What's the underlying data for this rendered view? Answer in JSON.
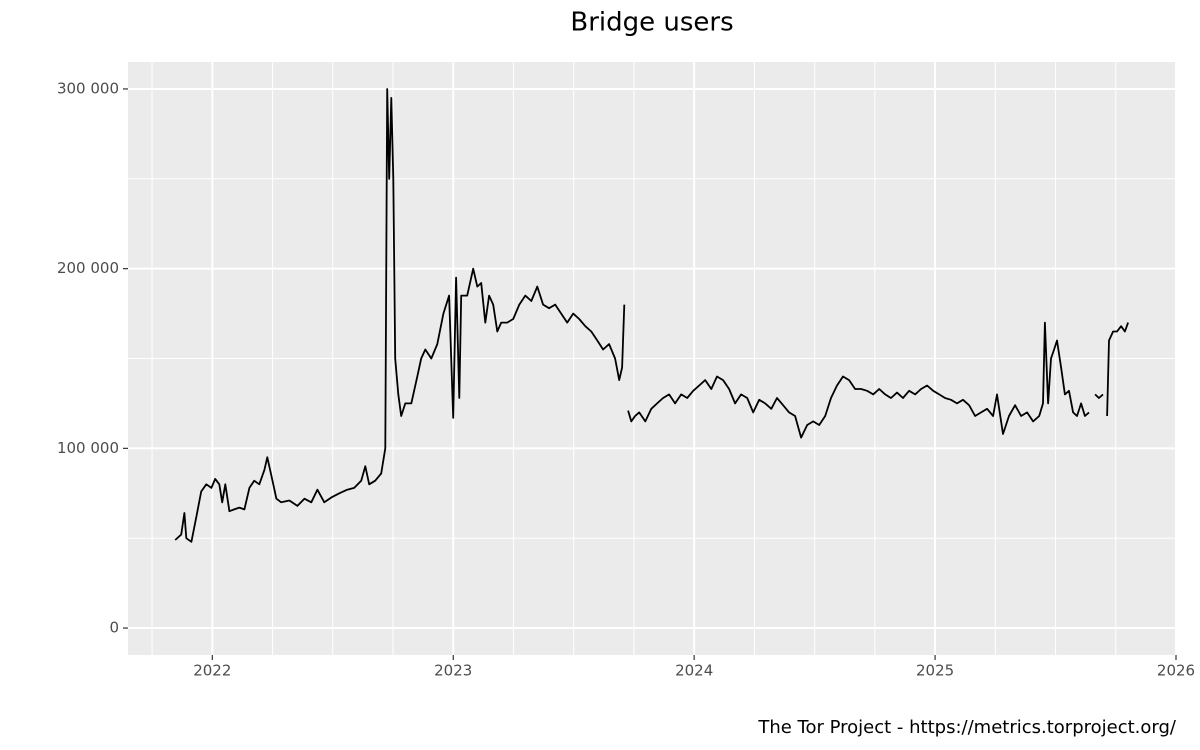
{
  "chart_data": {
    "type": "line",
    "title": "Bridge users",
    "caption": "The Tor Project - https://metrics.torproject.org/",
    "color": "#000000",
    "grid": true,
    "xlim": [
      2021.65,
      2026.0
    ],
    "xticks": [
      2022,
      2023,
      2024,
      2025,
      2026
    ],
    "x_minor_ticks": [
      2021.75,
      2022.25,
      2022.5,
      2022.75,
      2023.25,
      2023.5,
      2023.75,
      2024.25,
      2024.5,
      2024.75,
      2025.25,
      2025.5,
      2025.75
    ],
    "ylim": [
      -15000,
      315000
    ],
    "yticks": [
      0,
      {
        "value": 100000,
        "label": "100 000"
      },
      {
        "value": 200000,
        "label": "200 000"
      },
      {
        "value": 300000,
        "label": "300 000"
      }
    ],
    "y_minor_ticks": [
      50000,
      150000,
      250000
    ],
    "x": [
      2021.846,
      2021.871,
      2021.884,
      2021.892,
      2021.913,
      2021.934,
      2021.954,
      2021.975,
      2021.996,
      2022.012,
      2022.029,
      2022.041,
      2022.054,
      2022.071,
      2022.091,
      2022.112,
      2022.133,
      2022.154,
      2022.174,
      2022.195,
      2022.216,
      2022.228,
      2022.245,
      2022.266,
      2022.286,
      2022.32,
      2022.353,
      2022.382,
      2022.411,
      2022.436,
      2022.465,
      2022.498,
      2022.527,
      2022.56,
      2022.589,
      2022.618,
      2022.635,
      2022.651,
      2022.676,
      2022.701,
      2022.718,
      2022.726,
      2022.734,
      2022.743,
      2022.751,
      2022.759,
      2022.772,
      2022.784,
      2022.801,
      2022.826,
      2022.851,
      2022.867,
      2022.884,
      2022.909,
      2022.934,
      2022.959,
      2022.983,
      2023.0,
      2023.012,
      2023.025,
      2023.033,
      2023.058,
      2023.083,
      2023.1,
      2023.116,
      2023.133,
      2023.149,
      2023.166,
      2023.183,
      2023.199,
      2023.224,
      2023.249,
      2023.274,
      2023.299,
      2023.324,
      2023.349,
      2023.373,
      2023.398,
      2023.423,
      2023.448,
      2023.473,
      2023.498,
      2023.523,
      2023.548,
      2023.573,
      2023.598,
      2023.622,
      2023.647,
      2023.672,
      2023.689,
      2023.701,
      2023.71,
      2023.718,
      2023.726,
      2023.739,
      2023.755,
      2023.772,
      2023.797,
      2023.822,
      2023.846,
      2023.871,
      2023.896,
      2023.921,
      2023.946,
      2023.971,
      2023.996,
      2024.021,
      2024.046,
      2024.071,
      2024.095,
      2024.12,
      2024.145,
      2024.17,
      2024.195,
      2024.22,
      2024.245,
      2024.27,
      2024.295,
      2024.32,
      2024.344,
      2024.369,
      2024.394,
      2024.419,
      2024.444,
      2024.469,
      2024.494,
      2024.519,
      2024.544,
      2024.568,
      2024.593,
      2024.618,
      2024.643,
      2024.668,
      2024.693,
      2024.718,
      2024.743,
      2024.768,
      2024.793,
      2024.817,
      2024.842,
      2024.867,
      2024.892,
      2024.917,
      2024.942,
      2024.967,
      2024.992,
      2025.017,
      2025.041,
      2025.066,
      2025.091,
      2025.116,
      2025.141,
      2025.166,
      2025.191,
      2025.216,
      2025.241,
      2025.257,
      2025.282,
      2025.307,
      2025.332,
      2025.357,
      2025.382,
      2025.407,
      2025.432,
      2025.448,
      2025.456,
      2025.469,
      2025.481,
      2025.494,
      2025.506,
      2025.523,
      2025.539,
      2025.556,
      2025.573,
      2025.589,
      2025.606,
      2025.622,
      2025.639,
      2025.651,
      2025.664,
      2025.68,
      2025.697,
      2025.705,
      2025.714,
      2025.722,
      2025.739,
      2025.755,
      2025.772,
      2025.788,
      2025.801
    ],
    "values": [
      49000,
      52000,
      64000,
      50000,
      48000,
      62000,
      76000,
      80000,
      78000,
      83000,
      80000,
      70000,
      80000,
      65000,
      66000,
      67000,
      66000,
      78000,
      82000,
      80000,
      88000,
      95000,
      85000,
      72000,
      70000,
      71000,
      68000,
      72000,
      70000,
      77000,
      70000,
      73000,
      75000,
      77000,
      78000,
      82000,
      90000,
      80000,
      82000,
      86000,
      100000,
      300000,
      250000,
      295000,
      250000,
      150000,
      130000,
      118000,
      125000,
      125000,
      140000,
      150000,
      155000,
      150000,
      158000,
      175000,
      185000,
      117000,
      195000,
      128000,
      185000,
      185000,
      200000,
      190000,
      192000,
      170000,
      185000,
      180000,
      165000,
      170000,
      170000,
      172000,
      180000,
      185000,
      182000,
      190000,
      180000,
      178000,
      180000,
      175000,
      170000,
      175000,
      172000,
      168000,
      165000,
      160000,
      155000,
      158000,
      150000,
      138000,
      145000,
      180000,
      null,
      121000,
      115000,
      118000,
      120000,
      115000,
      122000,
      125000,
      128000,
      130000,
      125000,
      130000,
      128000,
      132000,
      135000,
      138000,
      133000,
      140000,
      138000,
      133000,
      125000,
      130000,
      128000,
      120000,
      127000,
      125000,
      122000,
      128000,
      124000,
      120000,
      118000,
      106000,
      113000,
      115000,
      113000,
      118000,
      128000,
      135000,
      140000,
      138000,
      133000,
      133000,
      132000,
      130000,
      133000,
      130000,
      128000,
      131000,
      128000,
      132000,
      130000,
      133000,
      135000,
      132000,
      130000,
      128000,
      127000,
      125000,
      127000,
      124000,
      118000,
      120000,
      122000,
      118000,
      130000,
      108000,
      118000,
      124000,
      118000,
      120000,
      115000,
      118000,
      125000,
      170000,
      125000,
      150000,
      155000,
      160000,
      145000,
      130000,
      132000,
      120000,
      118000,
      125000,
      118000,
      120000,
      null,
      130000,
      128000,
      130000,
      null,
      118000,
      160000,
      165000,
      165000,
      168000,
      165000,
      170000
    ]
  }
}
